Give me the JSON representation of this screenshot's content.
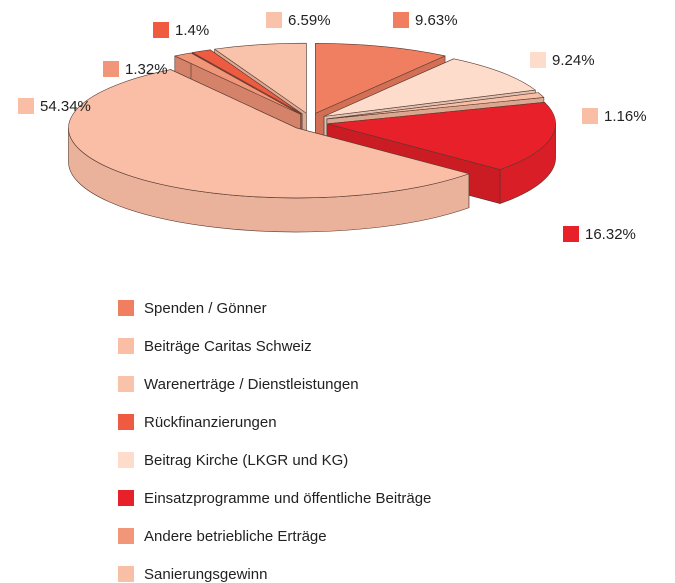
{
  "chart_data": {
    "type": "pie",
    "categories": [
      "Spenden / Gönner",
      "Beiträge Caritas Schweiz",
      "Warenerträge / Dienstleistungen",
      "Rückfinanzierungen",
      "Beitrag Kirche (LKGR und KG)",
      "Einsatzprogramme und öffentliche Beiträge",
      "Andere betriebliche Erträge",
      "Sanierungsgewinn"
    ],
    "values": [
      9.63,
      54.34,
      6.59,
      1.4,
      9.24,
      16.32,
      1.32,
      1.16
    ],
    "value_labels": [
      "9.63%",
      "54.34%",
      "6.59%",
      "1.4%",
      "9.24%",
      "16.32%",
      "1.32%",
      "1.16%"
    ],
    "colors": [
      "#ef7f60",
      "#f9bea5",
      "#f9c2aa",
      "#ee5b40",
      "#fddccb",
      "#e8202a",
      "#f29679",
      "#f9bfa6"
    ]
  }
}
